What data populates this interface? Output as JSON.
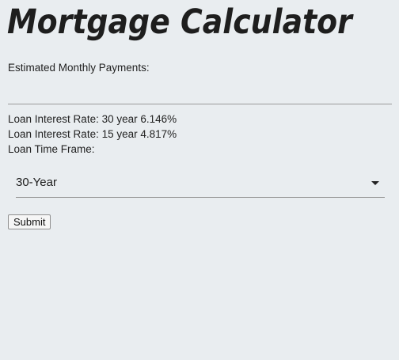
{
  "header": {
    "title": "Mortgage Calculator"
  },
  "payment": {
    "label": "Estimated Monthly Payments:",
    "value": ""
  },
  "rates": {
    "thirty_year": "Loan Interest Rate: 30 year 6.146%",
    "fifteen_year": "Loan Interest Rate: 15 year 4.817%"
  },
  "time_frame": {
    "label": "Loan Time Frame:",
    "selected": "30-Year",
    "icon": "caret-down-icon"
  },
  "form": {
    "submit_label": "Submit"
  }
}
